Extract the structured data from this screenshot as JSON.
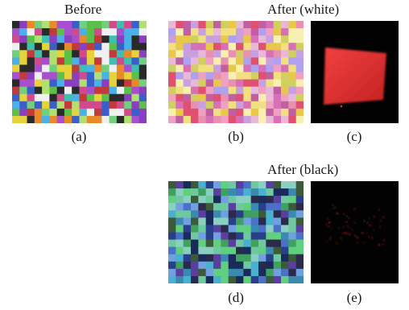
{
  "figure": {
    "headings": {
      "before": "Before",
      "after_white": "After (white)",
      "after_black": "After (black)"
    },
    "panels": [
      {
        "label": "(a)",
        "kind": "mosaic-original"
      },
      {
        "label": "(b)",
        "kind": "mosaic-light-palette"
      },
      {
        "label": "(c)",
        "kind": "red-glow-on-black"
      },
      {
        "label": "(d)",
        "kind": "mosaic-dark-palette"
      },
      {
        "label": "(e)",
        "kind": "faint-red-on-black"
      }
    ],
    "colors": {
      "palette_a": [
        "#d24a8c",
        "#3a5fc8",
        "#5bbf4a",
        "#e6d23a",
        "#8a3fc0",
        "#3fbfb0",
        "#c23a3a",
        "#e88a2a",
        "#2a2a2a",
        "#b0e070",
        "#f0f0f0",
        "#4ab0e8",
        "#a84fd0",
        "#70d080"
      ],
      "palette_b": [
        "#e8c84a",
        "#d870b8",
        "#f0a0c0",
        "#c8a0e0",
        "#e05070",
        "#b0a0f0",
        "#f0e080",
        "#e8b8d8",
        "#d0d060",
        "#c060a0",
        "#f8f0b0",
        "#e890b0"
      ],
      "palette_d": [
        "#2a3f8a",
        "#3fa060",
        "#70c8a0",
        "#4a70c8",
        "#2a2a4a",
        "#60d080",
        "#3a8ab0",
        "#5a3fa0",
        "#8ad0c0",
        "#3a5a3a",
        "#4ab0d0",
        "#1a2a5a",
        "#70a0e0"
      ],
      "glow_red": "#e83030",
      "background_black": "#020202"
    }
  }
}
